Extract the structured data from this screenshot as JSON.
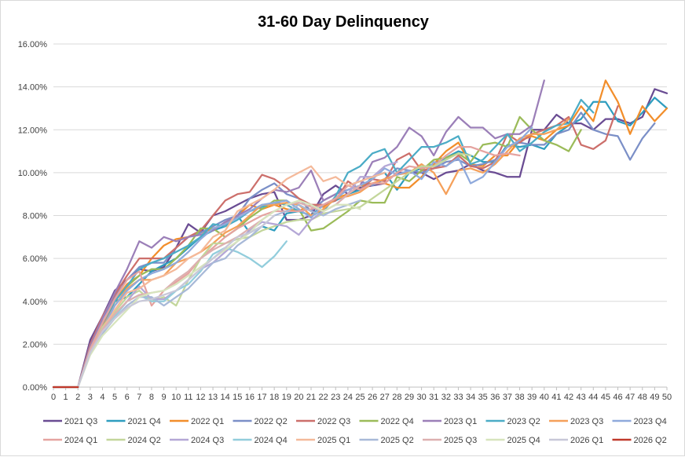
{
  "chart_data": {
    "type": "line",
    "title": "31-60 Day Delinquency",
    "xlabel": "",
    "ylabel": "",
    "ylim": [
      0,
      0.16
    ],
    "xlim": [
      0,
      50
    ],
    "y_ticks": [
      0,
      0.02,
      0.04,
      0.06,
      0.08,
      0.1,
      0.12,
      0.14,
      0.16
    ],
    "y_tick_labels": [
      "0.00%",
      "2.00%",
      "4.00%",
      "6.00%",
      "8.00%",
      "10.00%",
      "12.00%",
      "14.00%",
      "16.00%"
    ],
    "x_ticks": [
      0,
      1,
      2,
      3,
      4,
      5,
      6,
      7,
      8,
      9,
      10,
      11,
      12,
      13,
      14,
      15,
      16,
      17,
      18,
      19,
      20,
      21,
      22,
      23,
      24,
      25,
      26,
      27,
      28,
      29,
      30,
      31,
      32,
      33,
      34,
      35,
      36,
      37,
      38,
      39,
      40,
      41,
      42,
      43,
      44,
      45,
      46,
      47,
      48,
      49,
      50
    ],
    "grid": "horizontal",
    "legend_position": "bottom",
    "series": [
      {
        "name": "2021 Q3",
        "color": "#6a4c93",
        "values": [
          0,
          0,
          0,
          0.022,
          0.033,
          0.045,
          0.05,
          0.055,
          0.054,
          0.056,
          0.065,
          0.076,
          0.072,
          0.08,
          0.082,
          0.085,
          0.088,
          0.09,
          0.091,
          0.078,
          0.078,
          0.08,
          0.09,
          0.094,
          0.09,
          0.093,
          0.094,
          0.095,
          0.1,
          0.1,
          0.1,
          0.097,
          0.1,
          0.101,
          0.104,
          0.101,
          0.1,
          0.098,
          0.098,
          0.12,
          0.12,
          0.127,
          0.123,
          0.123,
          0.12,
          0.125,
          0.125,
          0.123,
          0.126,
          0.139,
          0.137
        ]
      },
      {
        "name": "2021 Q4",
        "color": "#2e9dbf",
        "values": [
          0,
          0,
          0,
          0.017,
          0.028,
          0.04,
          0.042,
          0.048,
          0.054,
          0.057,
          0.06,
          0.065,
          0.07,
          0.073,
          0.075,
          0.08,
          0.072,
          0.075,
          0.073,
          0.081,
          0.082,
          0.08,
          0.085,
          0.087,
          0.09,
          0.092,
          0.098,
          0.1,
          0.092,
          0.1,
          0.102,
          0.104,
          0.107,
          0.11,
          0.108,
          0.105,
          0.105,
          0.113,
          0.112,
          0.113,
          0.111,
          0.118,
          0.122,
          0.125,
          0.133,
          0.133,
          0.124,
          0.122,
          0.128,
          0.135,
          0.13
        ]
      },
      {
        "name": "2022 Q1",
        "color": "#f28e2b",
        "values": [
          0,
          0,
          0,
          0.018,
          0.03,
          0.04,
          0.048,
          0.052,
          0.06,
          0.066,
          0.069,
          0.07,
          0.072,
          0.074,
          0.076,
          0.08,
          0.085,
          0.083,
          0.085,
          0.083,
          0.082,
          0.085,
          0.084,
          0.088,
          0.09,
          0.094,
          0.095,
          0.095,
          0.093,
          0.093,
          0.098,
          0.104,
          0.11,
          0.114,
          0.104,
          0.103,
          0.108,
          0.108,
          0.115,
          0.117,
          0.115,
          0.12,
          0.122,
          0.131,
          0.124,
          0.143,
          0.133,
          0.118,
          0.131,
          0.124,
          0.13
        ]
      },
      {
        "name": "2022 Q2",
        "color": "#7b8fc7",
        "values": [
          0,
          0,
          0,
          0.02,
          0.032,
          0.042,
          0.05,
          0.056,
          0.058,
          0.058,
          0.065,
          0.07,
          0.072,
          0.075,
          0.078,
          0.08,
          0.088,
          0.092,
          0.095,
          0.09,
          0.088,
          0.082,
          0.087,
          0.09,
          0.094,
          0.096,
          0.094,
          0.097,
          0.102,
          0.101,
          0.1,
          0.102,
          0.105,
          0.106,
          0.103,
          0.104,
          0.106,
          0.112,
          0.114,
          0.113,
          0.113,
          0.118,
          0.12,
          0.128,
          0.12,
          0.118,
          0.117,
          0.106,
          0.116,
          0.123
        ]
      },
      {
        "name": "2022 Q3",
        "color": "#cc6f6b",
        "values": [
          0,
          0,
          0,
          0.02,
          0.033,
          0.043,
          0.052,
          0.06,
          0.06,
          0.06,
          0.065,
          0.07,
          0.073,
          0.08,
          0.087,
          0.09,
          0.091,
          0.099,
          0.097,
          0.093,
          0.088,
          0.085,
          0.085,
          0.087,
          0.096,
          0.092,
          0.097,
          0.096,
          0.106,
          0.109,
          0.101,
          0.102,
          0.103,
          0.108,
          0.103,
          0.102,
          0.105,
          0.118,
          0.114,
          0.118,
          0.12,
          0.122,
          0.126,
          0.113,
          0.111,
          0.115,
          0.131
        ]
      },
      {
        "name": "2022 Q4",
        "color": "#9bbb59",
        "values": [
          0,
          0,
          0,
          0.018,
          0.03,
          0.04,
          0.047,
          0.052,
          0.055,
          0.055,
          0.06,
          0.066,
          0.074,
          0.074,
          0.07,
          0.074,
          0.079,
          0.083,
          0.087,
          0.087,
          0.083,
          0.073,
          0.074,
          0.078,
          0.082,
          0.087,
          0.086,
          0.086,
          0.098,
          0.096,
          0.101,
          0.106,
          0.107,
          0.109,
          0.105,
          0.113,
          0.114,
          0.112,
          0.126,
          0.12,
          0.115,
          0.113,
          0.11,
          0.12
        ]
      },
      {
        "name": "2023 Q1",
        "color": "#9b7fb8",
        "values": [
          0,
          0,
          0,
          0.019,
          0.032,
          0.044,
          0.055,
          0.068,
          0.065,
          0.07,
          0.068,
          0.07,
          0.071,
          0.073,
          0.077,
          0.08,
          0.083,
          0.088,
          0.092,
          0.091,
          0.093,
          0.101,
          0.087,
          0.09,
          0.092,
          0.094,
          0.105,
          0.107,
          0.112,
          0.121,
          0.117,
          0.108,
          0.119,
          0.126,
          0.121,
          0.121,
          0.116,
          0.118,
          0.118,
          0.122,
          0.143
        ]
      },
      {
        "name": "2023 Q2",
        "color": "#4bacc6",
        "values": [
          0,
          0,
          0,
          0.018,
          0.03,
          0.04,
          0.047,
          0.055,
          0.058,
          0.06,
          0.063,
          0.066,
          0.07,
          0.076,
          0.075,
          0.078,
          0.082,
          0.084,
          0.086,
          0.085,
          0.082,
          0.08,
          0.082,
          0.089,
          0.1,
          0.103,
          0.109,
          0.111,
          0.1,
          0.106,
          0.112,
          0.112,
          0.114,
          0.117,
          0.104,
          0.106,
          0.112,
          0.118,
          0.11,
          0.114,
          0.119,
          0.122,
          0.123,
          0.134,
          0.128
        ]
      },
      {
        "name": "2023 Q3",
        "color": "#f5a05a",
        "values": [
          0,
          0,
          0,
          0.017,
          0.028,
          0.038,
          0.046,
          0.05,
          0.05,
          0.052,
          0.058,
          0.06,
          0.063,
          0.067,
          0.072,
          0.075,
          0.08,
          0.085,
          0.085,
          0.086,
          0.085,
          0.08,
          0.083,
          0.088,
          0.089,
          0.091,
          0.095,
          0.097,
          0.099,
          0.1,
          0.104,
          0.1,
          0.09,
          0.101,
          0.102,
          0.1,
          0.104,
          0.11,
          0.116,
          0.118,
          0.118,
          0.12,
          0.125
        ]
      },
      {
        "name": "2023 Q4",
        "color": "#8faadc",
        "values": [
          0,
          0,
          0,
          0.017,
          0.027,
          0.038,
          0.045,
          0.05,
          0.053,
          0.055,
          0.058,
          0.063,
          0.069,
          0.074,
          0.076,
          0.079,
          0.082,
          0.085,
          0.086,
          0.087,
          0.083,
          0.079,
          0.085,
          0.088,
          0.092,
          0.094,
          0.097,
          0.102,
          0.099,
          0.101,
          0.097,
          0.105,
          0.103,
          0.107,
          0.095,
          0.098,
          0.105,
          0.112,
          0.115,
          0.121
        ]
      },
      {
        "name": "2024 Q1",
        "color": "#e5a3a0",
        "values": [
          0,
          0,
          0,
          0.018,
          0.03,
          0.041,
          0.05,
          0.054,
          0.038,
          0.045,
          0.049,
          0.053,
          0.06,
          0.065,
          0.07,
          0.074,
          0.077,
          0.08,
          0.082,
          0.082,
          0.082,
          0.083,
          0.085,
          0.088,
          0.094,
          0.092,
          0.095,
          0.095,
          0.1,
          0.103,
          0.102,
          0.103,
          0.108,
          0.112,
          0.112,
          0.11,
          0.108,
          0.109,
          0.108
        ]
      },
      {
        "name": "2024 Q2",
        "color": "#c3d69b",
        "values": [
          0,
          0,
          0,
          0.016,
          0.028,
          0.035,
          0.042,
          0.045,
          0.04,
          0.042,
          0.038,
          0.05,
          0.06,
          0.067,
          0.067,
          0.069,
          0.07,
          0.073,
          0.075,
          0.077,
          0.078,
          0.078,
          0.081,
          0.082,
          0.083,
          0.084,
          0.088,
          0.092,
          0.096,
          0.1,
          0.103,
          0.103,
          0.106,
          0.109,
          0.108
        ]
      },
      {
        "name": "2024 Q3",
        "color": "#b4a7d6",
        "values": [
          0,
          0,
          0,
          0.017,
          0.026,
          0.033,
          0.04,
          0.047,
          0.041,
          0.041,
          0.045,
          0.05,
          0.055,
          0.058,
          0.063,
          0.068,
          0.073,
          0.077,
          0.076,
          0.075,
          0.071,
          0.078,
          0.082,
          0.085,
          0.09,
          0.098,
          0.098,
          0.103,
          0.105
        ]
      },
      {
        "name": "2024 Q4",
        "color": "#92cddc",
        "values": [
          0,
          0,
          0,
          0.016,
          0.026,
          0.033,
          0.04,
          0.043,
          0.04,
          0.04,
          0.045,
          0.048,
          0.054,
          0.062,
          0.065,
          0.063,
          0.06,
          0.056,
          0.061,
          0.068
        ]
      },
      {
        "name": "2025 Q1",
        "color": "#f4b99a",
        "values": [
          0,
          0,
          0,
          0.017,
          0.027,
          0.036,
          0.044,
          0.046,
          0.05,
          0.052,
          0.055,
          0.06,
          0.063,
          0.07,
          0.073,
          0.082,
          0.085,
          0.088,
          0.092,
          0.097,
          0.1,
          0.103,
          0.096,
          0.098,
          0.094,
          0.096,
          0.098,
          0.1
        ]
      },
      {
        "name": "2025 Q2",
        "color": "#a8b9d8",
        "values": [
          0,
          0,
          0,
          0.016,
          0.025,
          0.032,
          0.038,
          0.042,
          0.042,
          0.038,
          0.042,
          0.046,
          0.052,
          0.058,
          0.06,
          0.066,
          0.07,
          0.075,
          0.08,
          0.082,
          0.085,
          0.082,
          0.08,
          0.083,
          0.085,
          0.087
        ]
      },
      {
        "name": "2025 Q3",
        "color": "#ddb0b0",
        "values": [
          0,
          0,
          0,
          0.017,
          0.027,
          0.034,
          0.04,
          0.043,
          0.044,
          0.045,
          0.05,
          0.054,
          0.06,
          0.064,
          0.067,
          0.07,
          0.074,
          0.078,
          0.082,
          0.085,
          0.086,
          0.084,
          0.082,
          0.085,
          0.09,
          0.094
        ]
      },
      {
        "name": "2025 Q4",
        "color": "#d7e4bd",
        "values": [
          0,
          0,
          0,
          0.015,
          0.024,
          0.03,
          0.036,
          0.042,
          0.044,
          0.045,
          0.048,
          0.052,
          0.056,
          0.06,
          0.064,
          0.068,
          0.072,
          0.078,
          0.082,
          0.085,
          0.087,
          0.085,
          0.082,
          0.085,
          0.085,
          0.083
        ]
      },
      {
        "name": "2026 Q1",
        "color": "#c8c8d8",
        "values": [
          0,
          0,
          0,
          0.016,
          0.026,
          0.032,
          0.037,
          0.04,
          0.041,
          0.043,
          0.045,
          0.05,
          0.055,
          0.06,
          0.065,
          0.07,
          0.072,
          0.075,
          0.08
        ]
      },
      {
        "name": "2026 Q2",
        "color": "#c0392b",
        "values": [
          0,
          0,
          0
        ]
      }
    ]
  }
}
